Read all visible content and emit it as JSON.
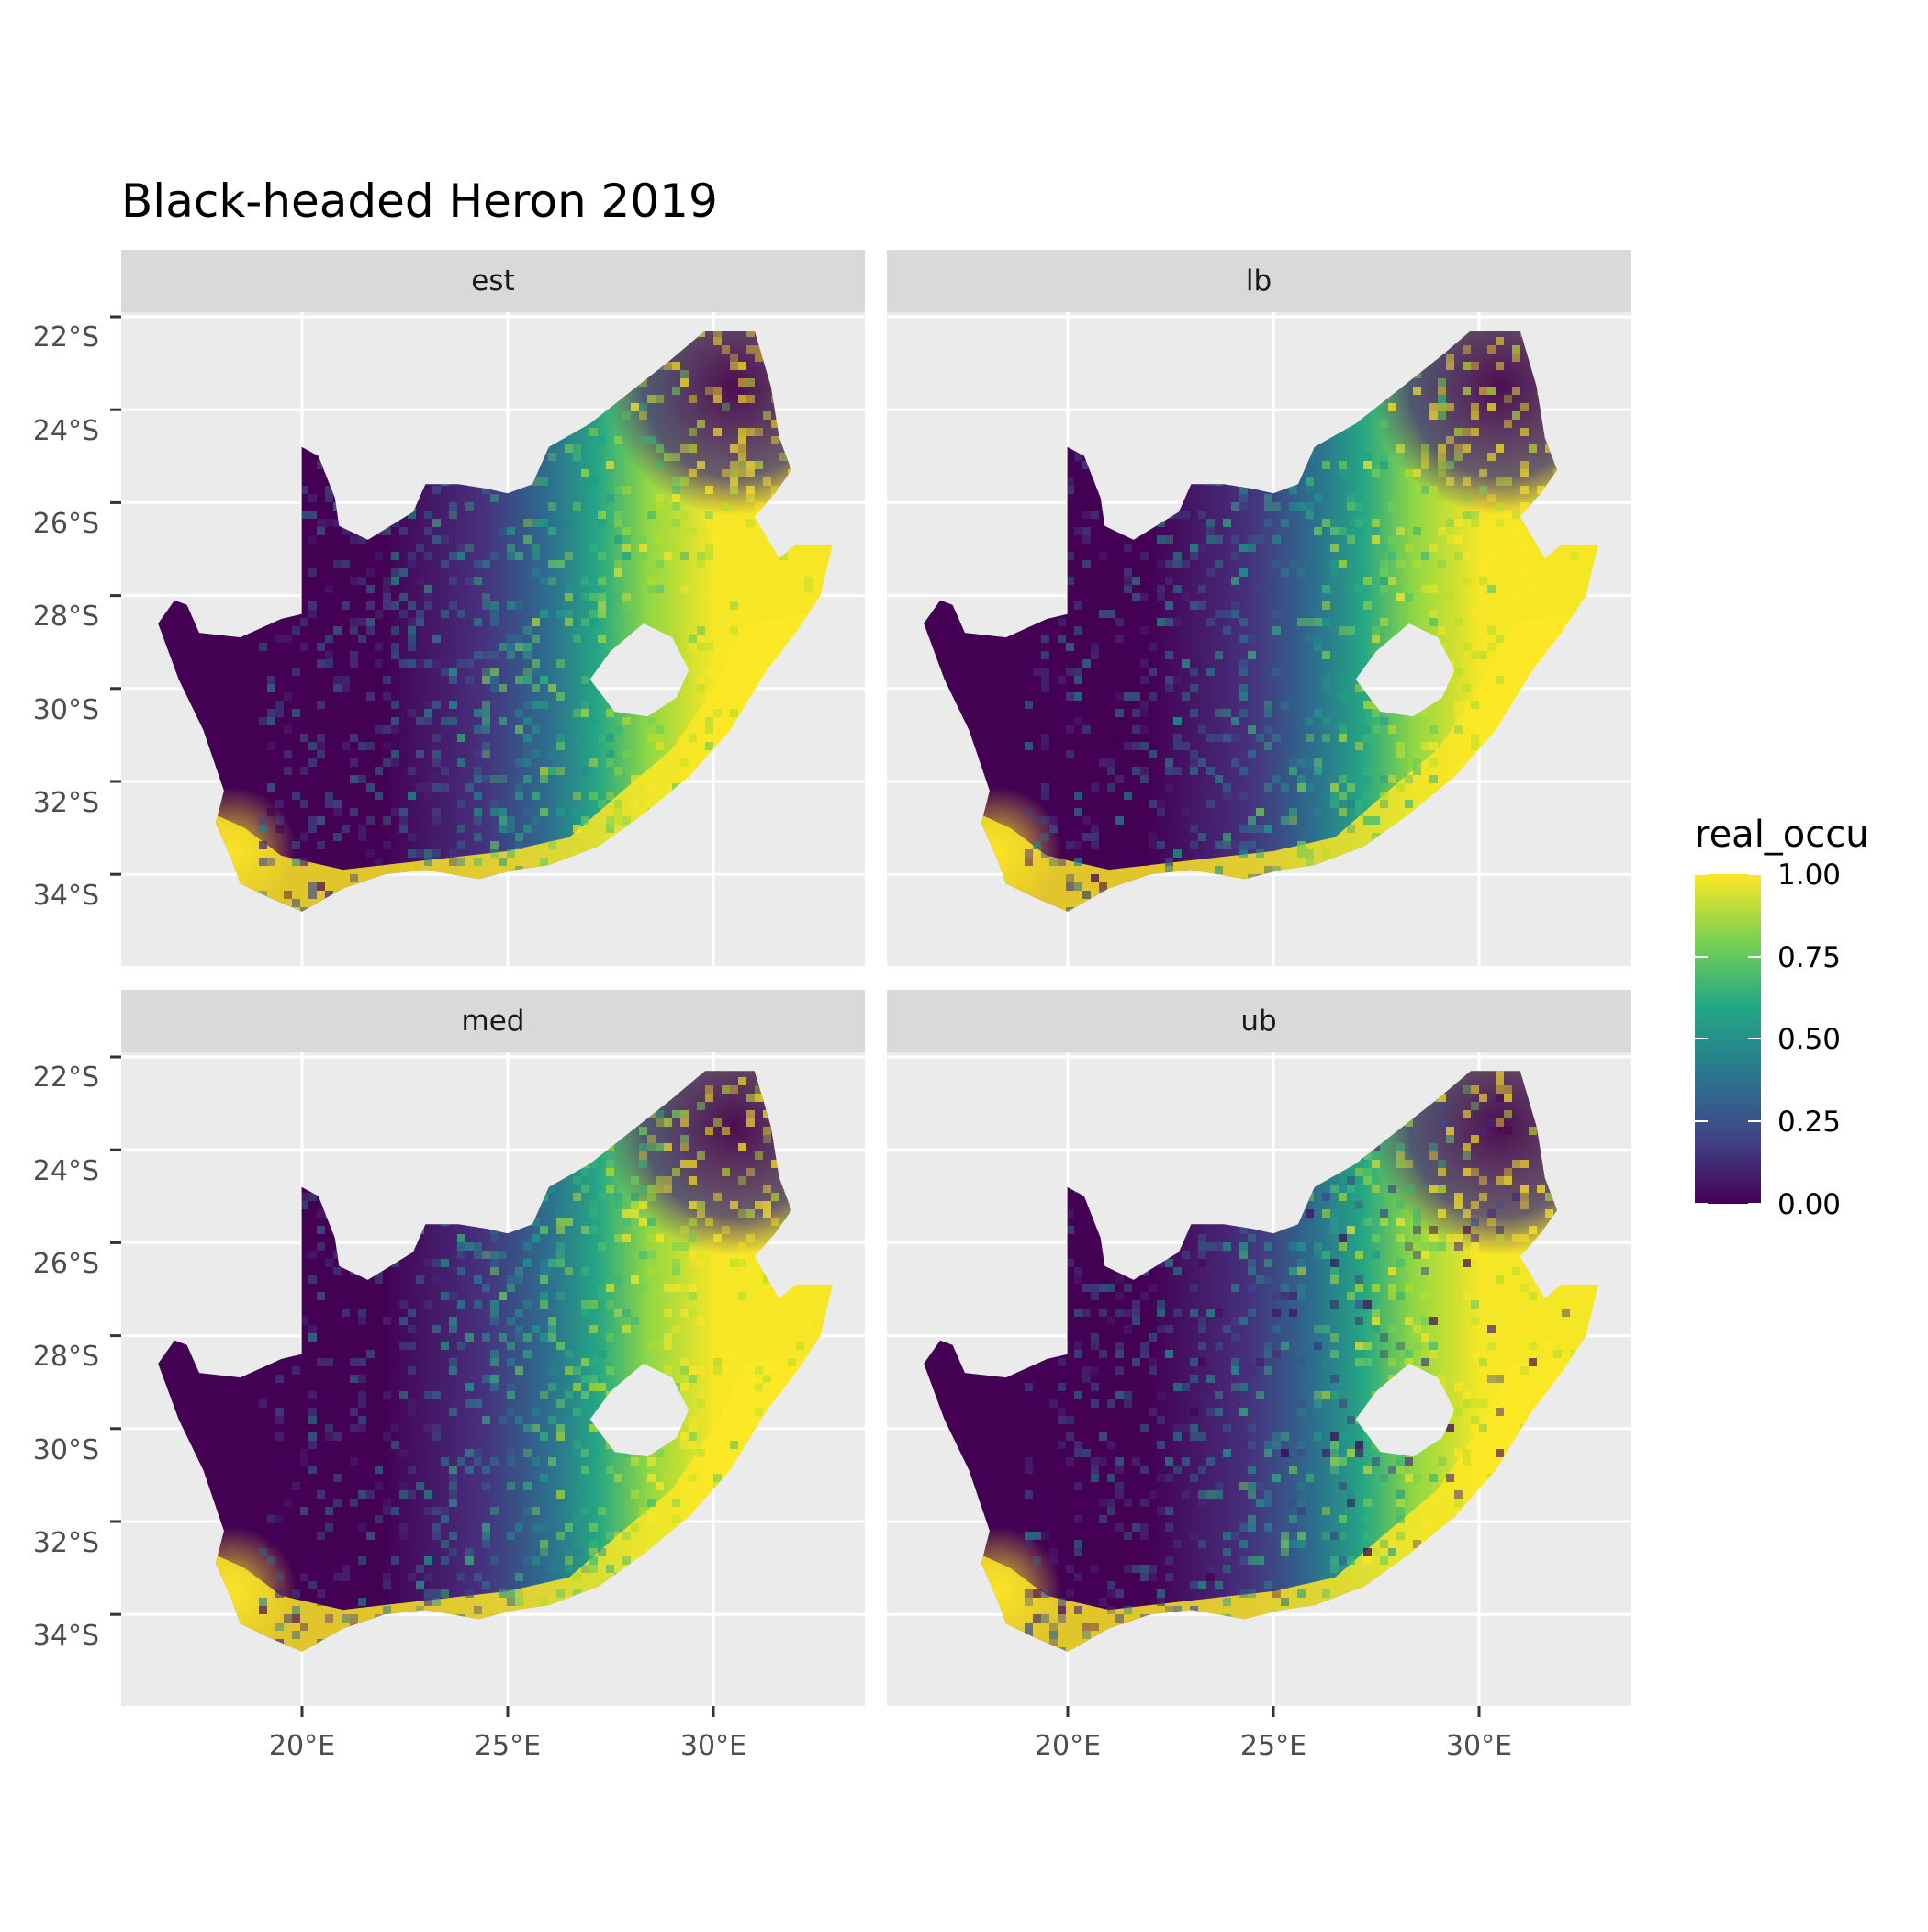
{
  "title": "Black-headed Heron 2019",
  "facets": [
    "est",
    "lb",
    "med",
    "ub"
  ],
  "axes": {
    "x_ticks": [
      "20°E",
      "25°E",
      "30°E"
    ],
    "y_ticks": [
      "22°S",
      "24°S",
      "26°S",
      "28°S",
      "30°S",
      "32°S",
      "34°S"
    ]
  },
  "legend": {
    "title": "real_occu",
    "labels": [
      "1.00",
      "0.75",
      "0.50",
      "0.25",
      "0.00"
    ],
    "colors": [
      "#fde725",
      "#7ad151",
      "#22a884",
      "#2a788e",
      "#414487",
      "#440154"
    ]
  },
  "colors": {
    "panel_bg": "#ebebeb",
    "strip_bg": "#d9d9d9",
    "grid": "#ffffff",
    "tick_text": "#4d4d4d"
  }
}
